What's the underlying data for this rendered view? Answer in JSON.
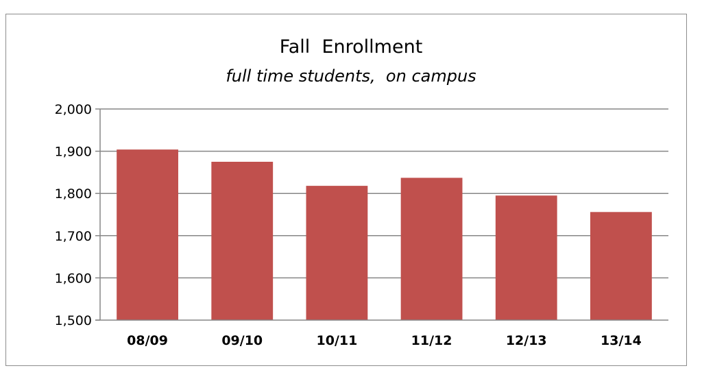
{
  "chart_data": {
    "type": "bar",
    "title": "Fall  Enrollment",
    "subtitle": "full time students,  on campus",
    "xlabel": "",
    "ylabel": "",
    "categories": [
      "08/09",
      "09/10",
      "10/11",
      "11/12",
      "12/13",
      "13/14"
    ],
    "series": [
      {
        "values": [
          1904,
          1875,
          1818,
          1837,
          1795,
          1756
        ]
      }
    ],
    "ylim": [
      1500,
      2000
    ],
    "yticks": [
      1500,
      1600,
      1700,
      1800,
      1900,
      2000
    ],
    "ytick_labels": [
      "1,500",
      "1,600",
      "1,700",
      "1,800",
      "1,900",
      "2,000"
    ],
    "grid": true,
    "legend": "none",
    "bar_color": "#c0504d",
    "grid_color": "#868686"
  }
}
